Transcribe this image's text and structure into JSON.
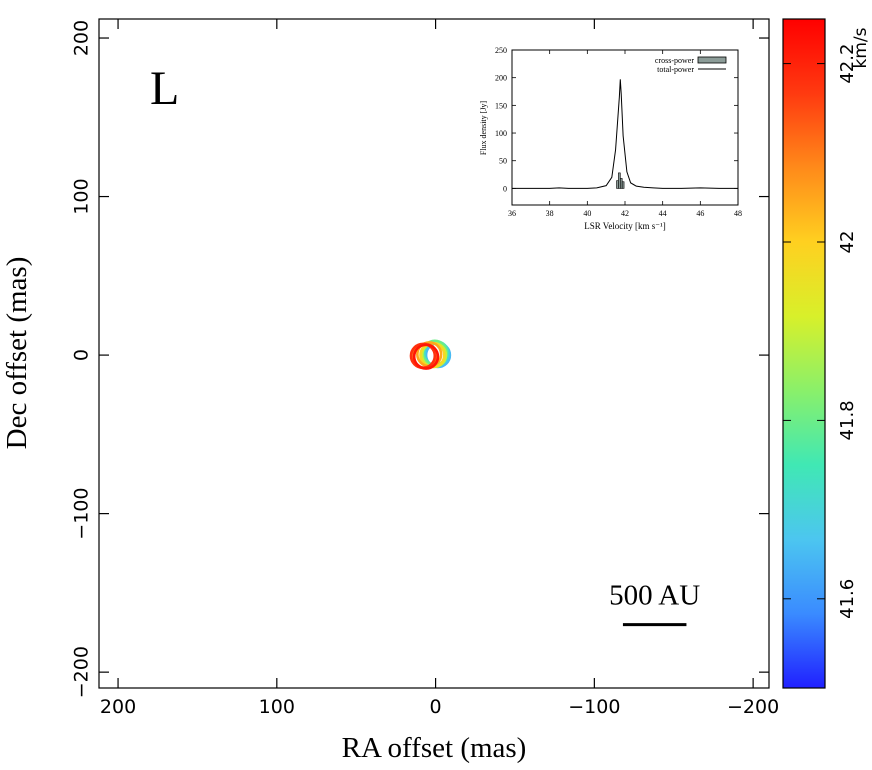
{
  "chart_data": [
    {
      "type": "scatter",
      "panel_label": "L",
      "xlabel": "RA offset (mas)",
      "ylabel": "Dec offset (mas)",
      "xlim": [
        212,
        -210
      ],
      "ylim": [
        -210,
        212
      ],
      "xticks": [
        200,
        100,
        0,
        -100,
        -200
      ],
      "yticks": [
        200,
        100,
        0,
        -100,
        -200
      ],
      "xtick_labels": [
        "200",
        "100",
        "0",
        "−100",
        "−200"
      ],
      "ytick_labels": [
        "200",
        "100",
        "0",
        "−100",
        "−200"
      ],
      "grid": false,
      "scale_bar": {
        "label": "500 AU",
        "length_mas": 40,
        "x_start": -118,
        "y": -170
      },
      "points": [
        {
          "ra": -1.5,
          "dec": 0.0,
          "velocity": 41.65
        },
        {
          "ra": -0.5,
          "dec": 1.0,
          "velocity": 41.72
        },
        {
          "ra": 0.5,
          "dec": 1.5,
          "velocity": 41.8
        },
        {
          "ra": 1.0,
          "dec": 0.0,
          "velocity": 41.9
        },
        {
          "ra": 2.0,
          "dec": 0.0,
          "velocity": 41.98
        },
        {
          "ra": 4.0,
          "dec": 0.5,
          "velocity": 42.05
        },
        {
          "ra": 6.5,
          "dec": -0.5,
          "velocity": 42.12
        },
        {
          "ra": 8.0,
          "dec": -0.5,
          "velocity": 42.18
        },
        {
          "ra": 6.0,
          "dec": -1.0,
          "velocity": 42.22
        }
      ],
      "marker_radius_mas": 7.5,
      "colorbar": {
        "label": "km/s",
        "min": 41.5,
        "max": 42.25,
        "ticks": [
          41.6,
          41.8,
          42,
          42.2
        ],
        "tick_labels": [
          "41.6",
          "41.8",
          "42",
          "42.2"
        ],
        "colormap": [
          "#2020ff",
          "#3a8bff",
          "#4cc6f0",
          "#40e8b4",
          "#8af06a",
          "#d8f02a",
          "#ffd020",
          "#ff8a1a",
          "#ff3a10",
          "#ff0000"
        ]
      }
    },
    {
      "type": "line",
      "title": "",
      "xlabel": "LSR Velocity [km s⁻¹]",
      "ylabel": "Flux density [Jy]",
      "xlim": [
        36,
        48
      ],
      "ylim": [
        -30,
        250
      ],
      "xticks": [
        36,
        38,
        40,
        42,
        44,
        46,
        48
      ],
      "yticks": [
        0,
        50,
        100,
        150,
        200,
        250
      ],
      "xtick_labels": [
        "36",
        "38",
        "40",
        "42",
        "44",
        "46",
        "48"
      ],
      "ytick_labels": [
        "0",
        "50",
        "100",
        "150",
        "200",
        "250"
      ],
      "legend_position": "top-right",
      "series": [
        {
          "name": "cross-power",
          "style": "bars",
          "x": [
            41.6,
            41.7,
            41.8,
            41.9
          ],
          "y": [
            14,
            28,
            18,
            12
          ]
        },
        {
          "name": "total-power",
          "style": "line",
          "x": [
            36,
            37,
            38,
            38.5,
            39,
            39.5,
            40,
            40.5,
            41,
            41.3,
            41.5,
            41.7,
            41.75,
            41.8,
            41.9,
            42.1,
            42.3,
            42.6,
            43,
            43.5,
            44,
            45,
            46,
            47,
            48
          ],
          "y": [
            0,
            0,
            0,
            1,
            0,
            0,
            0,
            1,
            5,
            20,
            70,
            165,
            197,
            170,
            95,
            30,
            10,
            4,
            2,
            1,
            0,
            0,
            1,
            0,
            0
          ]
        }
      ]
    }
  ]
}
